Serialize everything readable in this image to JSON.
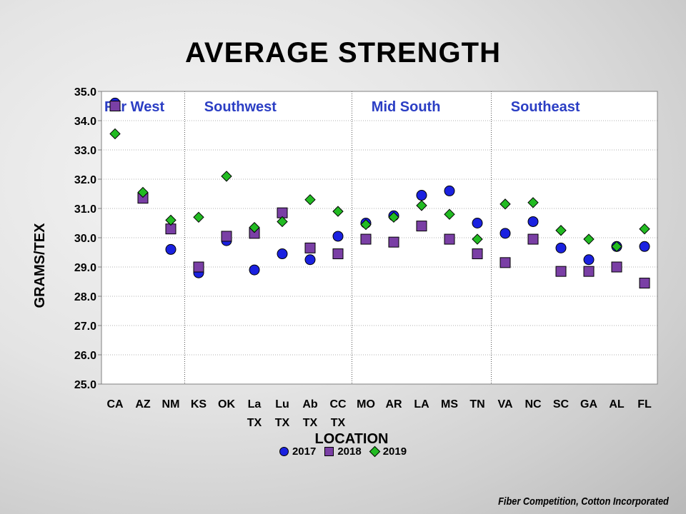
{
  "chart_data": {
    "type": "scatter",
    "title": "AVERAGE STRENGTH",
    "xlabel": "LOCATION",
    "ylabel": "GRAMS/TEX",
    "ylim": [
      25.0,
      35.0
    ],
    "yticks": [
      "25.0",
      "26.0",
      "27.0",
      "28.0",
      "29.0",
      "30.0",
      "31.0",
      "32.0",
      "33.0",
      "34.0",
      "35.0"
    ],
    "grid": true,
    "legend_position": "bottom",
    "categories": [
      [
        "CA"
      ],
      [
        "AZ"
      ],
      [
        "NM"
      ],
      [
        "KS"
      ],
      [
        "OK"
      ],
      [
        "La",
        "TX"
      ],
      [
        "Lu",
        "TX"
      ],
      [
        "Ab",
        "TX"
      ],
      [
        "CC",
        "TX"
      ],
      [
        "MO"
      ],
      [
        "AR"
      ],
      [
        "LA"
      ],
      [
        "MS"
      ],
      [
        "TN"
      ],
      [
        "VA"
      ],
      [
        "NC"
      ],
      [
        "SC"
      ],
      [
        "GA"
      ],
      [
        "AL"
      ],
      [
        "FL"
      ]
    ],
    "regions": [
      {
        "name": "Far West",
        "start": 0,
        "end": 2
      },
      {
        "name": "Southwest",
        "start": 3,
        "end": 8
      },
      {
        "name": "Mid South",
        "start": 9,
        "end": 13
      },
      {
        "name": "Southeast",
        "start": 14,
        "end": 19
      }
    ],
    "series": [
      {
        "name": "2017",
        "marker": "circle",
        "color": "#1a21e0",
        "values": [
          34.6,
          31.4,
          29.6,
          28.8,
          29.9,
          28.9,
          29.45,
          29.25,
          30.05,
          30.5,
          30.75,
          31.45,
          31.6,
          30.5,
          30.15,
          30.55,
          29.65,
          29.25,
          29.7,
          29.7
        ]
      },
      {
        "name": "2018",
        "marker": "square",
        "color": "#7a3fa5",
        "values": [
          34.5,
          31.35,
          30.3,
          29.0,
          30.05,
          30.15,
          30.85,
          29.65,
          29.45,
          29.95,
          29.85,
          30.4,
          29.95,
          29.45,
          29.15,
          29.95,
          28.85,
          28.85,
          29.0,
          28.45
        ]
      },
      {
        "name": "2019",
        "marker": "diamond",
        "color": "#22bb22",
        "values": [
          33.55,
          31.55,
          30.6,
          30.7,
          32.1,
          30.35,
          30.55,
          31.3,
          30.9,
          30.45,
          30.7,
          31.1,
          30.8,
          29.95,
          31.15,
          31.2,
          30.25,
          29.95,
          29.7,
          30.3
        ]
      }
    ]
  },
  "source": "Fiber Competition, Cotton Incorporated"
}
